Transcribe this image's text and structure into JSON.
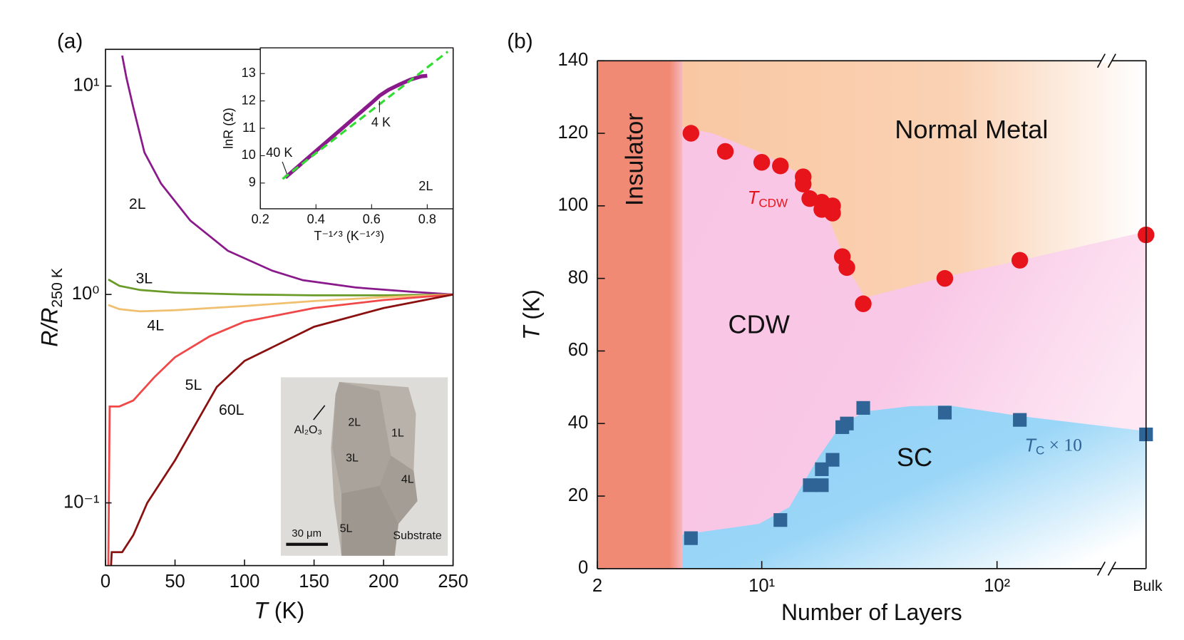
{
  "chart_data": [
    {
      "type": "line",
      "panel_label": "(a)",
      "log_y": true,
      "x_label": {
        "symbol": "T",
        "unit": " (K)"
      },
      "y_label": {
        "text": "R/R",
        "subscript": "250 K"
      },
      "xlim": [
        0,
        250
      ],
      "ylim": [
        0.05,
        15
      ],
      "xticks": [
        0,
        50,
        100,
        150,
        200,
        250
      ],
      "yticks": [
        {
          "value": 0.1,
          "label": "10⁻¹"
        },
        {
          "value": 1,
          "label": "10⁰"
        },
        {
          "value": 10,
          "label": "10¹"
        }
      ],
      "series": [
        {
          "name": "2L",
          "color": "#8a1a8c",
          "x": [
            12,
            15,
            20,
            28,
            40,
            61,
            88,
            120,
            142,
            180,
            220,
            250
          ],
          "values": [
            14,
            11,
            7.9,
            4.8,
            3.4,
            2.26,
            1.62,
            1.3,
            1.17,
            1.08,
            1.03,
            1
          ]
        },
        {
          "name": "3L",
          "color": "#6a9a28",
          "x": [
            2,
            10,
            25,
            50,
            100,
            150,
            200,
            250
          ],
          "values": [
            1.18,
            1.1,
            1.05,
            1.02,
            1.0,
            0.99,
            0.99,
            1
          ]
        },
        {
          "name": "4L",
          "color": "#f0c070",
          "x": [
            2,
            10,
            25,
            50,
            100,
            150,
            200,
            250
          ],
          "values": [
            0.89,
            0.85,
            0.83,
            0.84,
            0.88,
            0.93,
            0.97,
            1
          ]
        },
        {
          "name": "5L",
          "color": "#f04848",
          "x": [
            2,
            3,
            10,
            20,
            35,
            50,
            75,
            100,
            150,
            200,
            250
          ],
          "values": [
            0.05,
            0.29,
            0.29,
            0.31,
            0.4,
            0.5,
            0.63,
            0.74,
            0.86,
            0.94,
            1
          ]
        },
        {
          "name": "60L",
          "color": "#8b1010",
          "x": [
            4,
            4.5,
            12,
            20,
            30,
            50,
            80,
            100,
            150,
            200,
            250
          ],
          "values": [
            0.05,
            0.058,
            0.058,
            0.07,
            0.1,
            0.16,
            0.36,
            0.48,
            0.7,
            0.86,
            1
          ]
        }
      ]
    },
    {
      "type": "line",
      "x_label": "T⁻¹ᐟ³ (K⁻¹ᐟ³)",
      "y_label": "lnR (Ω)",
      "xlim": [
        0.2,
        0.893
      ],
      "ylim": [
        8.06,
        13.94
      ],
      "xticks": [
        0.2,
        0.4,
        0.6,
        0.8
      ],
      "yticks": [
        9,
        10,
        11,
        12,
        13
      ],
      "annotations": [
        "40 K",
        "4 K",
        "2L"
      ],
      "series": [
        {
          "color": "#8a1a8c",
          "x": [
            0.29,
            0.35,
            0.4,
            0.45,
            0.5,
            0.55,
            0.6,
            0.63,
            0.66,
            0.7,
            0.74,
            0.78,
            0.8
          ],
          "values": [
            9.2,
            9.73,
            10.17,
            10.61,
            11.05,
            11.49,
            11.93,
            12.2,
            12.4,
            12.6,
            12.78,
            12.9,
            12.92
          ]
        },
        {
          "color": "#33dd33",
          "dashed": true,
          "x": [
            0.28,
            0.874
          ],
          "values": [
            9.15,
            13.8
          ]
        }
      ]
    },
    {
      "type": "scatter",
      "panel_label": "(b)",
      "log_x": true,
      "x_label": "Number of Layers",
      "y_label": {
        "symbol": "T",
        "unit": " (K)"
      },
      "xlim": [
        2,
        430
      ],
      "ylim": [
        0,
        140
      ],
      "xticks": [
        2,
        {
          "value": 10,
          "label": "10¹"
        },
        {
          "value": 100,
          "label": "10²"
        }
      ],
      "yticks": [
        0,
        20,
        40,
        60,
        80,
        100,
        120,
        140
      ],
      "bulk_label": "Bulk",
      "regions": [
        "Insulator",
        "Normal Metal",
        "CDW",
        "SC"
      ],
      "series": [
        {
          "label": {
            "text": "T",
            "subscript": "CDW"
          },
          "color": "#e8141b",
          "marker": "circle",
          "x": [
            5,
            7,
            10,
            12,
            15,
            15,
            16,
            18,
            18,
            20,
            20,
            22,
            23,
            27,
            60,
            125
          ],
          "values": [
            120,
            115,
            112,
            111,
            108,
            106,
            102,
            101,
            99,
            100,
            98,
            86,
            83,
            73,
            80,
            85
          ],
          "bulk_value": 92
        },
        {
          "label": {
            "text": "T",
            "subscript": "C",
            "suffix": " × 10"
          },
          "color": "#2e6496",
          "marker": "square",
          "x": [
            5,
            12,
            16,
            18,
            18,
            20,
            22,
            23,
            27,
            60,
            125
          ],
          "values": [
            8.4,
            13.4,
            23,
            23,
            27.4,
            30,
            39,
            40,
            44.3,
            43,
            41
          ],
          "bulk_value": 37
        }
      ]
    }
  ],
  "micrograph": {
    "labels": [
      "Al₂O₃",
      "2L",
      "1L",
      "3L",
      "4L",
      "5L",
      "Substrate"
    ],
    "scale_bar": "30 μm"
  }
}
